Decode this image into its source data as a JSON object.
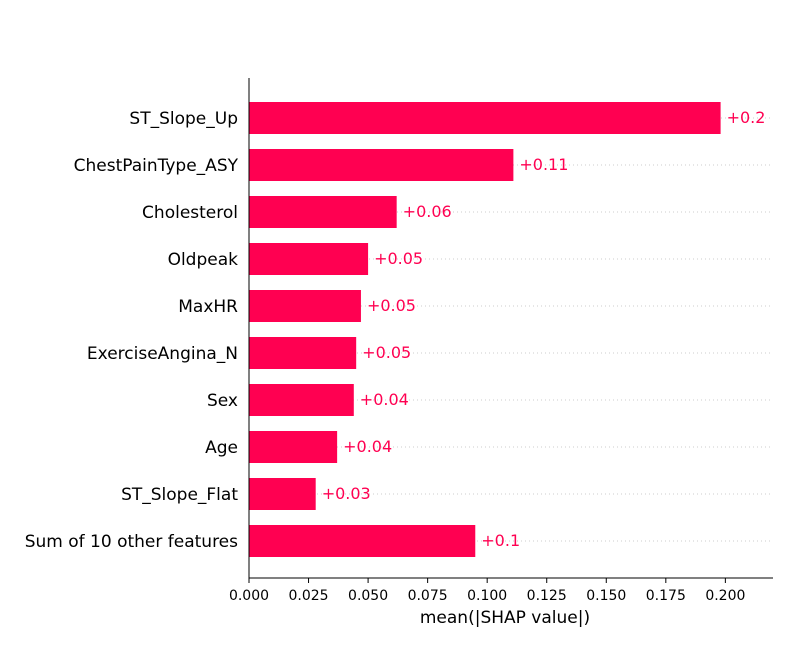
{
  "chart_data": {
    "type": "bar",
    "orientation": "horizontal",
    "categories": [
      "ST_Slope_Up",
      "ChestPainType_ASY",
      "Cholesterol",
      "Oldpeak",
      "MaxHR",
      "ExerciseAngina_N",
      "Sex",
      "Age",
      "ST_Slope_Flat",
      "Sum of 10 other features"
    ],
    "values": [
      0.198,
      0.111,
      0.062,
      0.05,
      0.047,
      0.045,
      0.044,
      0.037,
      0.028,
      0.095
    ],
    "value_labels": [
      "+0.2",
      "+0.11",
      "+0.06",
      "+0.05",
      "+0.05",
      "+0.05",
      "+0.04",
      "+0.04",
      "+0.03",
      "+0.1"
    ],
    "xlabel": "mean(|SHAP value|)",
    "ylabel": "",
    "title": "",
    "xlim": [
      0,
      0.22
    ],
    "xticks": [
      0.0,
      0.025,
      0.05,
      0.075,
      0.1,
      0.125,
      0.15,
      0.175,
      0.2
    ],
    "xtick_labels": [
      "0.000",
      "0.025",
      "0.050",
      "0.075",
      "0.100",
      "0.125",
      "0.150",
      "0.175",
      "0.200"
    ],
    "grid": "dotted horizontal row guides",
    "legend": "none",
    "colors": {
      "bar": "#ff0051",
      "value_label": "#ff0051",
      "axis": "#000000",
      "grid": "#cccccc"
    }
  }
}
